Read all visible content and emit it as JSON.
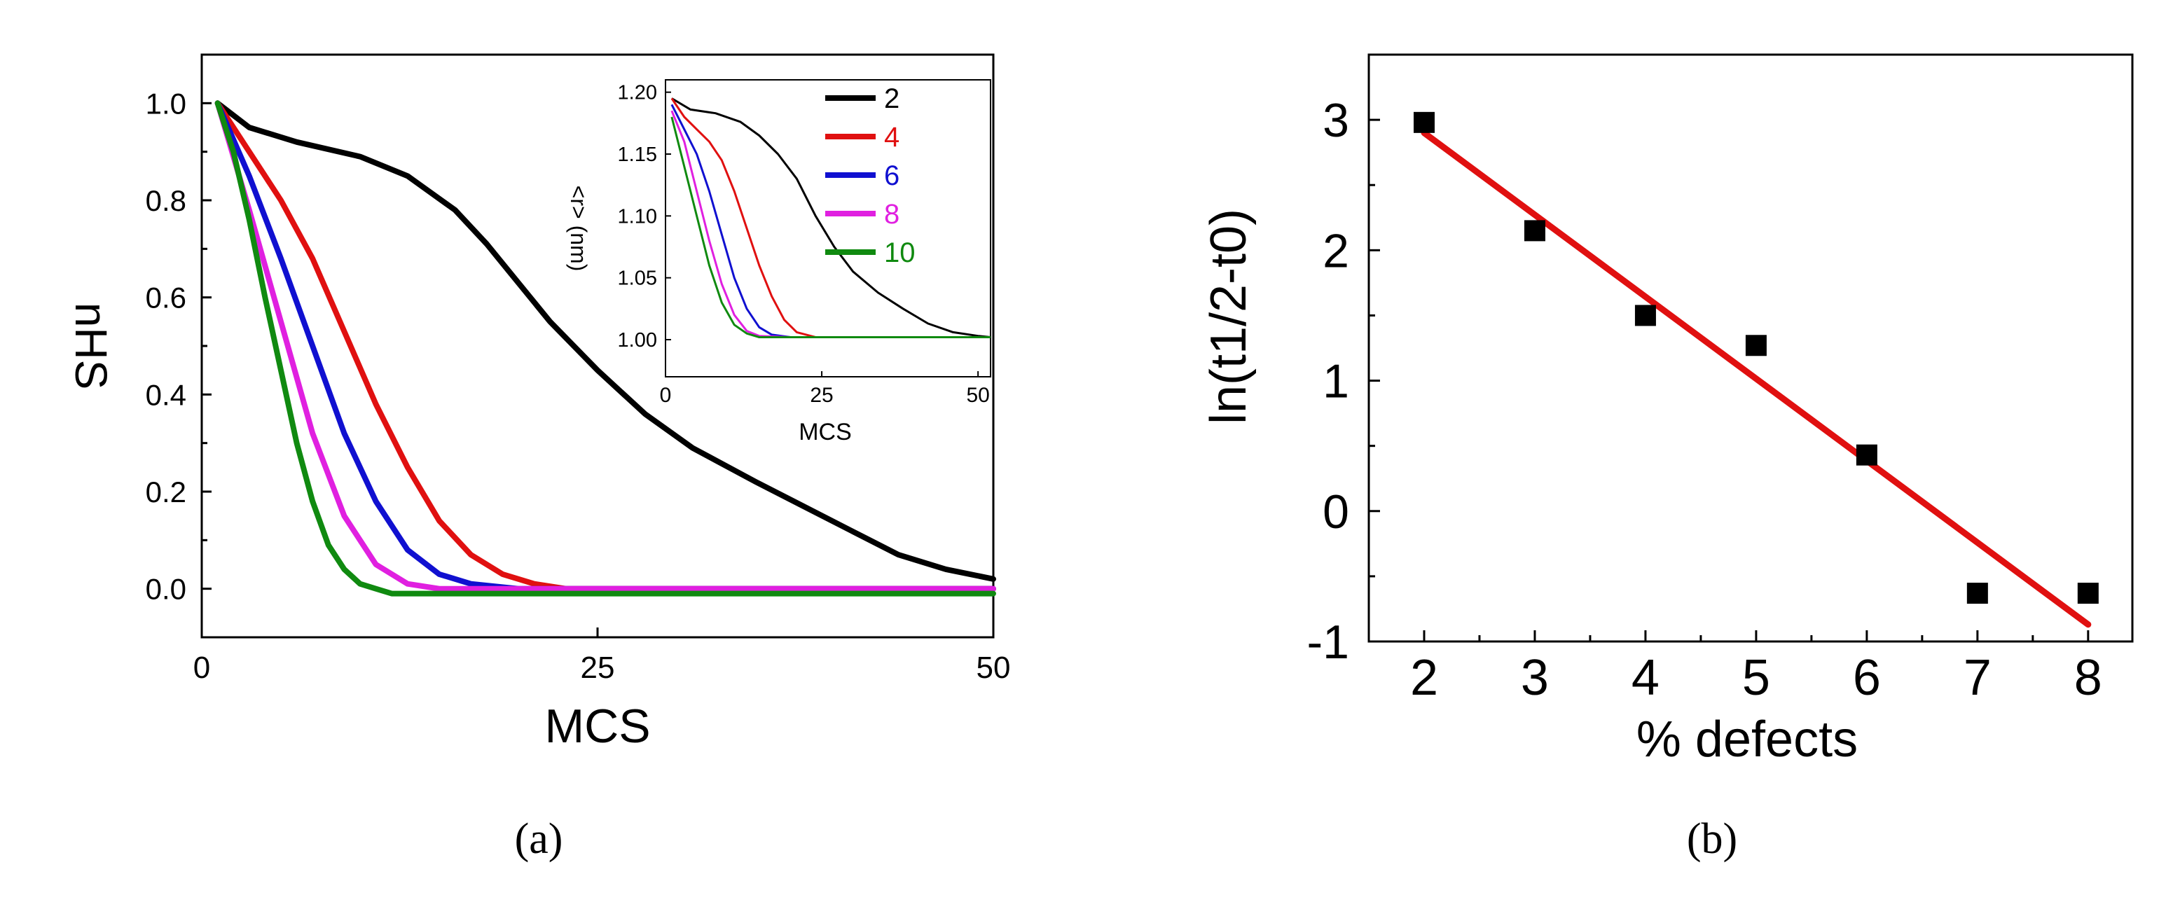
{
  "chart_data": [
    {
      "id": "a",
      "type": "line",
      "caption": "(a)",
      "xlabel": "MCS",
      "ylabel": "nHS",
      "xlim": [
        0,
        50
      ],
      "ylim": [
        -0.1,
        1.1
      ],
      "xticks": [
        0,
        25,
        50
      ],
      "xtick_labels": [
        "0",
        "25",
        "50"
      ],
      "yticks": [
        0.0,
        0.2,
        0.4,
        0.6,
        0.8,
        1.0
      ],
      "ytick_labels": [
        "0.0",
        "0.2",
        "0.4",
        "0.6",
        "0.8",
        "1.0"
      ],
      "legend_position": "top-right",
      "series": [
        {
          "name": "2",
          "color": "#000000",
          "x": [
            1,
            3,
            6,
            10,
            13,
            16,
            18,
            20,
            22,
            25,
            28,
            31,
            35,
            38,
            41,
            44,
            47,
            50
          ],
          "y": [
            1.0,
            0.95,
            0.92,
            0.89,
            0.85,
            0.78,
            0.71,
            0.63,
            0.55,
            0.45,
            0.36,
            0.29,
            0.22,
            0.17,
            0.12,
            0.07,
            0.04,
            0.02
          ]
        },
        {
          "name": "4",
          "color": "#e01010",
          "x": [
            1,
            3,
            5,
            7,
            9,
            11,
            13,
            15,
            17,
            19,
            21,
            23,
            30,
            40,
            50
          ],
          "y": [
            1.0,
            0.9,
            0.8,
            0.68,
            0.53,
            0.38,
            0.25,
            0.14,
            0.07,
            0.03,
            0.01,
            0.0,
            0.0,
            0.0,
            0.0
          ]
        },
        {
          "name": "6",
          "color": "#1010d0",
          "x": [
            1,
            3,
            5,
            7,
            9,
            11,
            13,
            15,
            17,
            20,
            30,
            40,
            50
          ],
          "y": [
            1.0,
            0.85,
            0.68,
            0.5,
            0.32,
            0.18,
            0.08,
            0.03,
            0.01,
            0.0,
            0.0,
            0.0,
            0.0
          ]
        },
        {
          "name": "8",
          "color": "#e020e0",
          "x": [
            1,
            3,
            5,
            7,
            9,
            11,
            13,
            15,
            20,
            30,
            40,
            50
          ],
          "y": [
            1.0,
            0.78,
            0.55,
            0.32,
            0.15,
            0.05,
            0.01,
            0.0,
            0.0,
            0.0,
            0.0,
            0.0
          ]
        },
        {
          "name": "10",
          "color": "#108a10",
          "x": [
            1,
            2,
            3,
            4,
            5,
            6,
            7,
            8,
            9,
            10,
            11,
            12,
            15,
            20,
            30,
            40,
            50
          ],
          "y": [
            1.0,
            0.9,
            0.76,
            0.6,
            0.45,
            0.3,
            0.18,
            0.09,
            0.04,
            0.01,
            0.0,
            -0.01,
            -0.01,
            -0.01,
            -0.01,
            -0.01,
            -0.01
          ]
        }
      ],
      "inset": {
        "type": "line",
        "xlabel": "MCS",
        "ylabel": "<r> (nm)",
        "xlim": [
          0,
          52
        ],
        "ylim": [
          0.97,
          1.21
        ],
        "xticks": [
          0,
          25,
          50
        ],
        "xtick_labels": [
          "0",
          "25",
          "50"
        ],
        "yticks": [
          1.0,
          1.05,
          1.1,
          1.15,
          1.2
        ],
        "ytick_labels": [
          "1.00",
          "1.05",
          "1.10",
          "1.15",
          "1.20"
        ],
        "series": [
          {
            "name": "2",
            "color": "#000000",
            "x": [
              1,
              4,
              8,
              12,
              15,
              18,
              21,
              24,
              27,
              30,
              34,
              38,
              42,
              46,
              50,
              52
            ],
            "y": [
              1.195,
              1.186,
              1.183,
              1.176,
              1.165,
              1.15,
              1.13,
              1.1,
              1.075,
              1.055,
              1.038,
              1.025,
              1.013,
              1.006,
              1.003,
              1.002
            ]
          },
          {
            "name": "4",
            "color": "#e01010",
            "x": [
              1,
              3,
              5,
              7,
              9,
              11,
              13,
              15,
              17,
              19,
              21,
              24,
              30,
              40,
              52
            ],
            "y": [
              1.195,
              1.18,
              1.17,
              1.16,
              1.145,
              1.12,
              1.09,
              1.06,
              1.035,
              1.016,
              1.006,
              1.002,
              1.002,
              1.002,
              1.002
            ]
          },
          {
            "name": "6",
            "color": "#1010d0",
            "x": [
              1,
              3,
              5,
              7,
              9,
              11,
              13,
              15,
              17,
              20,
              30,
              40,
              52
            ],
            "y": [
              1.19,
              1.17,
              1.15,
              1.12,
              1.085,
              1.05,
              1.025,
              1.01,
              1.004,
              1.002,
              1.002,
              1.002,
              1.002
            ]
          },
          {
            "name": "8",
            "color": "#e020e0",
            "x": [
              1,
              3,
              5,
              7,
              9,
              11,
              13,
              15,
              20,
              30,
              40,
              52
            ],
            "y": [
              1.185,
              1.16,
              1.12,
              1.08,
              1.045,
              1.02,
              1.007,
              1.003,
              1.002,
              1.002,
              1.002,
              1.002
            ]
          },
          {
            "name": "10",
            "color": "#108a10",
            "x": [
              1,
              3,
              5,
              7,
              9,
              11,
              13,
              15,
              20,
              30,
              40,
              52
            ],
            "y": [
              1.18,
              1.14,
              1.1,
              1.06,
              1.03,
              1.012,
              1.005,
              1.002,
              1.002,
              1.002,
              1.002,
              1.002
            ]
          }
        ]
      }
    },
    {
      "id": "b",
      "type": "scatter",
      "caption": "(b)",
      "xlabel": "% defects",
      "ylabel": "ln(t1/2-t0)",
      "xlim": [
        1.5,
        8.4
      ],
      "ylim": [
        -1,
        3.5
      ],
      "xticks": [
        2,
        3,
        4,
        5,
        6,
        7,
        8
      ],
      "xtick_labels": [
        "2",
        "3",
        "4",
        "5",
        "6",
        "7",
        "8"
      ],
      "yticks": [
        -1,
        0,
        1,
        2,
        3
      ],
      "ytick_labels": [
        "-1",
        "0",
        "1",
        "2",
        "3"
      ],
      "points": {
        "x": [
          2,
          3,
          4,
          5,
          6,
          7,
          8
        ],
        "y": [
          2.98,
          2.15,
          1.5,
          1.27,
          0.43,
          -0.63,
          -0.63
        ],
        "color": "#000000",
        "marker": "square"
      },
      "fit_line": {
        "x": [
          2,
          8
        ],
        "y": [
          2.9,
          -0.87
        ],
        "color": "#e01010"
      }
    }
  ]
}
